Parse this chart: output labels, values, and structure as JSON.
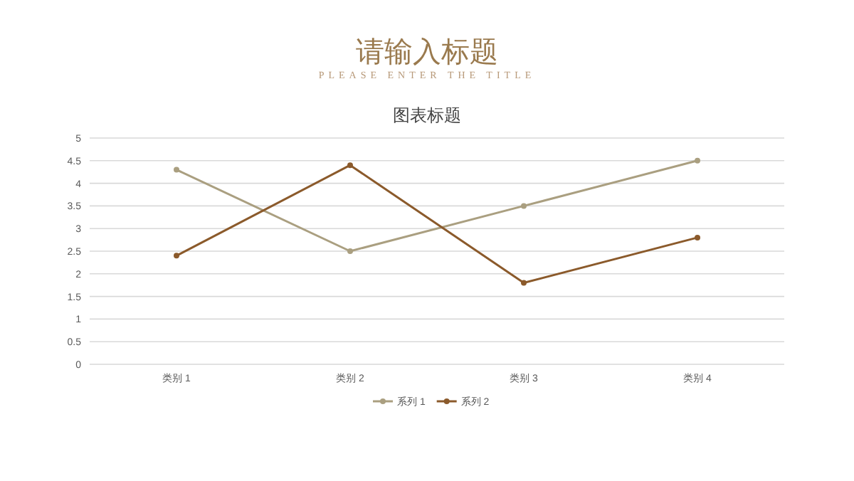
{
  "chart_data": {
    "type": "line",
    "title": "请输入标题",
    "subtitle": "PLEASE ENTER THE TITLE",
    "annotations": [
      "图表标题"
    ],
    "categories": [
      "类别 1",
      "类别 2",
      "类别 3",
      "类别 4"
    ],
    "series": [
      {
        "name": "系列 1",
        "color": "#aa9f80",
        "values": [
          4.3,
          2.5,
          3.5,
          4.5
        ]
      },
      {
        "name": "系列 2",
        "color": "#8b5a2b",
        "values": [
          2.4,
          4.4,
          1.8,
          2.8
        ]
      }
    ],
    "ylim": [
      0,
      5
    ],
    "yticks": [
      0,
      0.5,
      1,
      1.5,
      2,
      2.5,
      3,
      3.5,
      4,
      4.5,
      5
    ],
    "grid": "y",
    "legend": "bottom",
    "marker": "circle",
    "line_style": "solid"
  }
}
